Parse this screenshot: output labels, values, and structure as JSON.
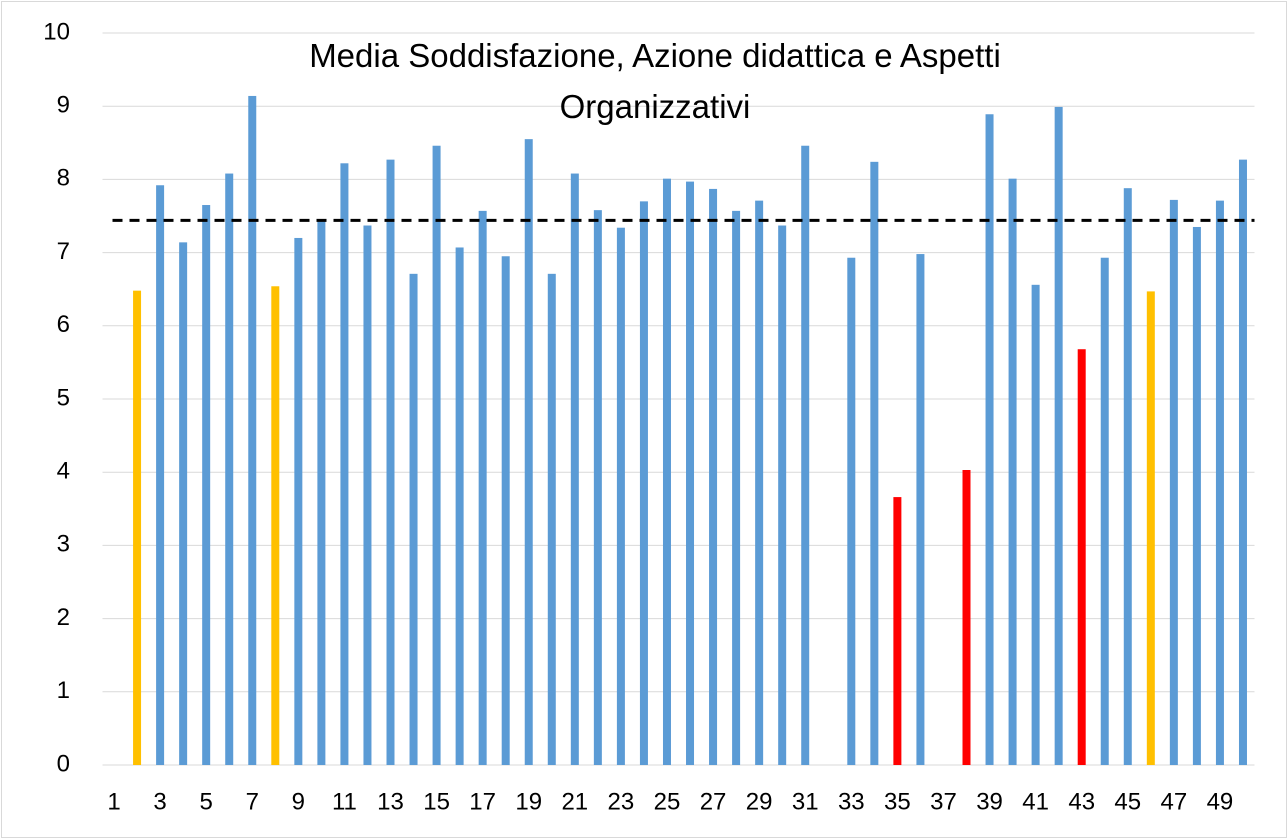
{
  "chart_data": {
    "type": "bar",
    "title": "Media Soddisfazione, Azione didattica e Aspetti Organizzativi",
    "categories": [
      "1",
      null,
      "3",
      null,
      "5",
      null,
      "7",
      null,
      "9",
      null,
      "11",
      null,
      "13",
      null,
      "15",
      null,
      "17",
      null,
      "19",
      null,
      "21",
      null,
      "23",
      null,
      "25",
      null,
      "27",
      null,
      "29",
      null,
      "31",
      null,
      "33",
      null,
      "35",
      null,
      "37",
      null,
      "39",
      null,
      "41",
      null,
      "43",
      null,
      "45",
      null,
      "47",
      null,
      "49",
      null
    ],
    "values": [
      null,
      6.48,
      7.92,
      7.14,
      7.65,
      8.08,
      9.14,
      6.54,
      7.2,
      7.45,
      8.22,
      7.37,
      8.27,
      6.71,
      8.46,
      7.07,
      7.57,
      6.95,
      8.55,
      6.71,
      8.08,
      7.58,
      7.34,
      7.7,
      8.01,
      7.97,
      7.87,
      7.57,
      7.71,
      7.37,
      8.46,
      null,
      6.93,
      8.24,
      3.66,
      6.98,
      null,
      4.03,
      8.89,
      8.01,
      6.56,
      8.99,
      5.68,
      6.93,
      7.88,
      6.47,
      7.72,
      7.35,
      7.71,
      8.27
    ],
    "colors": [
      "#5b9bd5",
      "#ffc000",
      "#5b9bd5",
      "#5b9bd5",
      "#5b9bd5",
      "#5b9bd5",
      "#5b9bd5",
      "#ffc000",
      "#5b9bd5",
      "#5b9bd5",
      "#5b9bd5",
      "#5b9bd5",
      "#5b9bd5",
      "#5b9bd5",
      "#5b9bd5",
      "#5b9bd5",
      "#5b9bd5",
      "#5b9bd5",
      "#5b9bd5",
      "#5b9bd5",
      "#5b9bd5",
      "#5b9bd5",
      "#5b9bd5",
      "#5b9bd5",
      "#5b9bd5",
      "#5b9bd5",
      "#5b9bd5",
      "#5b9bd5",
      "#5b9bd5",
      "#5b9bd5",
      "#5b9bd5",
      "#5b9bd5",
      "#5b9bd5",
      "#5b9bd5",
      "#ff0000",
      "#5b9bd5",
      "#5b9bd5",
      "#ff0000",
      "#5b9bd5",
      "#5b9bd5",
      "#5b9bd5",
      "#5b9bd5",
      "#ff0000",
      "#5b9bd5",
      "#5b9bd5",
      "#ffc000",
      "#5b9bd5",
      "#5b9bd5",
      "#5b9bd5",
      "#5b9bd5"
    ],
    "reference_line": {
      "value": 7.44,
      "color": "#000000",
      "dashed": true
    },
    "ylim": [
      0,
      10
    ],
    "yticks": [
      0,
      1,
      2,
      3,
      4,
      5,
      6,
      7,
      8,
      9,
      10
    ],
    "grid": true
  }
}
